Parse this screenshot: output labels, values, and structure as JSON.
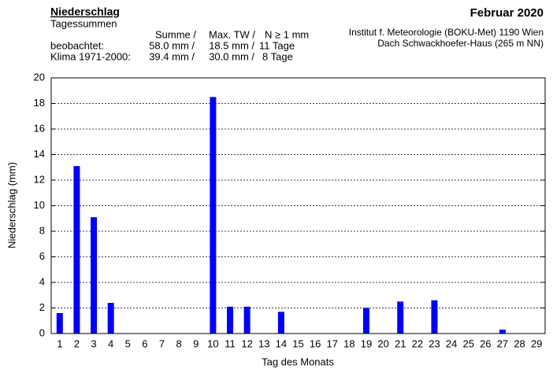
{
  "chart_data": {
    "type": "bar",
    "title": "Niederschlag",
    "subtitle": "Tagessummen",
    "period": "Februar 2020",
    "institute": [
      "Institut f. Meteorologie (BOKU-Met) 1190 Wien",
      "Dach Schwackhoefer-Haus (265 m NN)"
    ],
    "stats": {
      "columns": [
        "Summe  /",
        "Max. TW /",
        "N ≥ 1 mm"
      ],
      "rows": [
        [
          "beobachtet:",
          "58.0 mm /",
          "18.5 mm /",
          "11 Tage"
        ],
        [
          "Klima 1971-2000:",
          "39.4 mm /",
          "30.0 mm /",
          "8 Tage"
        ]
      ]
    },
    "x_label": "Tag des Monats",
    "y_label": "Niederschlag (mm)",
    "categories": [
      "1",
      "2",
      "3",
      "4",
      "5",
      "6",
      "7",
      "8",
      "9",
      "10",
      "11",
      "12",
      "13",
      "14",
      "15",
      "16",
      "17",
      "18",
      "19",
      "20",
      "21",
      "22",
      "23",
      "24",
      "25",
      "26",
      "27",
      "28",
      "29"
    ],
    "values": [
      1.6,
      13.1,
      9.1,
      2.4,
      0,
      0,
      0,
      0,
      0,
      18.5,
      2.1,
      2.1,
      0,
      1.7,
      0,
      0,
      0,
      0,
      2.0,
      0,
      2.5,
      0,
      2.6,
      0,
      0,
      0,
      0.3,
      0,
      0
    ],
    "color": "#0000ff",
    "ylim": [
      0,
      20
    ],
    "yticks": [
      0,
      2,
      4,
      6,
      8,
      10,
      12,
      14,
      16,
      18,
      20
    ],
    "grid": true
  }
}
